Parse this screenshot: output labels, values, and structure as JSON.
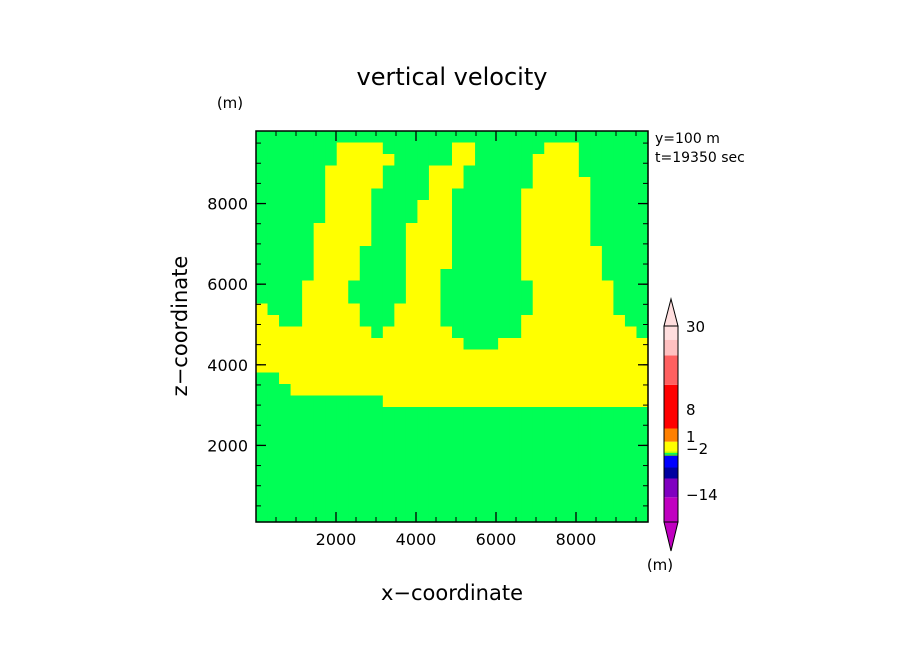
{
  "chart_data": {
    "type": "heatmap",
    "title": "vertical velocity",
    "xlabel": "x−coordinate",
    "ylabel": "z−coordinate",
    "x_unit": "(m)",
    "y_unit": "(m)",
    "xlim": [
      0,
      9800
    ],
    "ylim": [
      100,
      9800
    ],
    "xticks": [
      2000,
      4000,
      6000,
      8000
    ],
    "yticks": [
      2000,
      4000,
      6000,
      8000
    ],
    "info": [
      "y=100  m",
      "t=19350 sec"
    ],
    "colorbar": {
      "unit": "(m)",
      "labels": [
        {
          "value": 30,
          "text": "30"
        },
        {
          "value": 8,
          "text": "8"
        },
        {
          "value": 1,
          "text": "1"
        },
        {
          "value": -2,
          "text": "−2"
        },
        {
          "value": -14,
          "text": "−14"
        }
      ],
      "colors": [
        "#c000c0",
        "#8000c0",
        "#0000a0",
        "#0000ff",
        "#40a040",
        "#00ff55",
        "#b0ff00",
        "#ffff00",
        "#ff8000",
        "#ff0000",
        "#ff6060",
        "#ffc0c0",
        "#ffdede"
      ]
    },
    "field": {
      "nx": 34,
      "nz": 34,
      "colors": [
        "#00ff55",
        "#ffff00"
      ],
      "grid": [
        "0000000000000000000000000000000000",
        "0000000111100000011000000111000000",
        "0000000111110000011000001111000000",
        "0000001111100001110000001111000000",
        "0000001111100001110000001111100000",
        "0000001111000001100000011111100000",
        "0000001111000011100000011111100000",
        "0000001111000011100000011111100000",
        "0000011111000111100000011111100000",
        "0000011111000111100000011111100000",
        "0000011110000111100000011111110000",
        "0000011110000111100000011111110000",
        "0000011110000111000000011111110000",
        "0000111100000111000000001111111000",
        "0000111100000111000000001111111000",
        "1000111110001111000000001111111000",
        "1100111110001111000000011111111100",
        "1111111111011111100000011111111110",
        "1111111111111111110001111111111111",
        "1111111111111111111111111111111111",
        "1111111111111111111111111111111111",
        "0011111111111111111111111111111111",
        "0001111111111111111111111111111111",
        "0000000000011111111111111111111111",
        "0000000000000000000000000000000000",
        "0000000000000000000000000000000000",
        "0000000000000000000000000000000000",
        "0000000000000000000000000000000000",
        "0000000000000000000000000000000000",
        "0000000000000000000000000000000000",
        "0000000000000000000000000000000000",
        "0000000000000000000000000000000000",
        "0000000000000000000000000000000000",
        "0000000000000000000000000000000000"
      ]
    }
  }
}
